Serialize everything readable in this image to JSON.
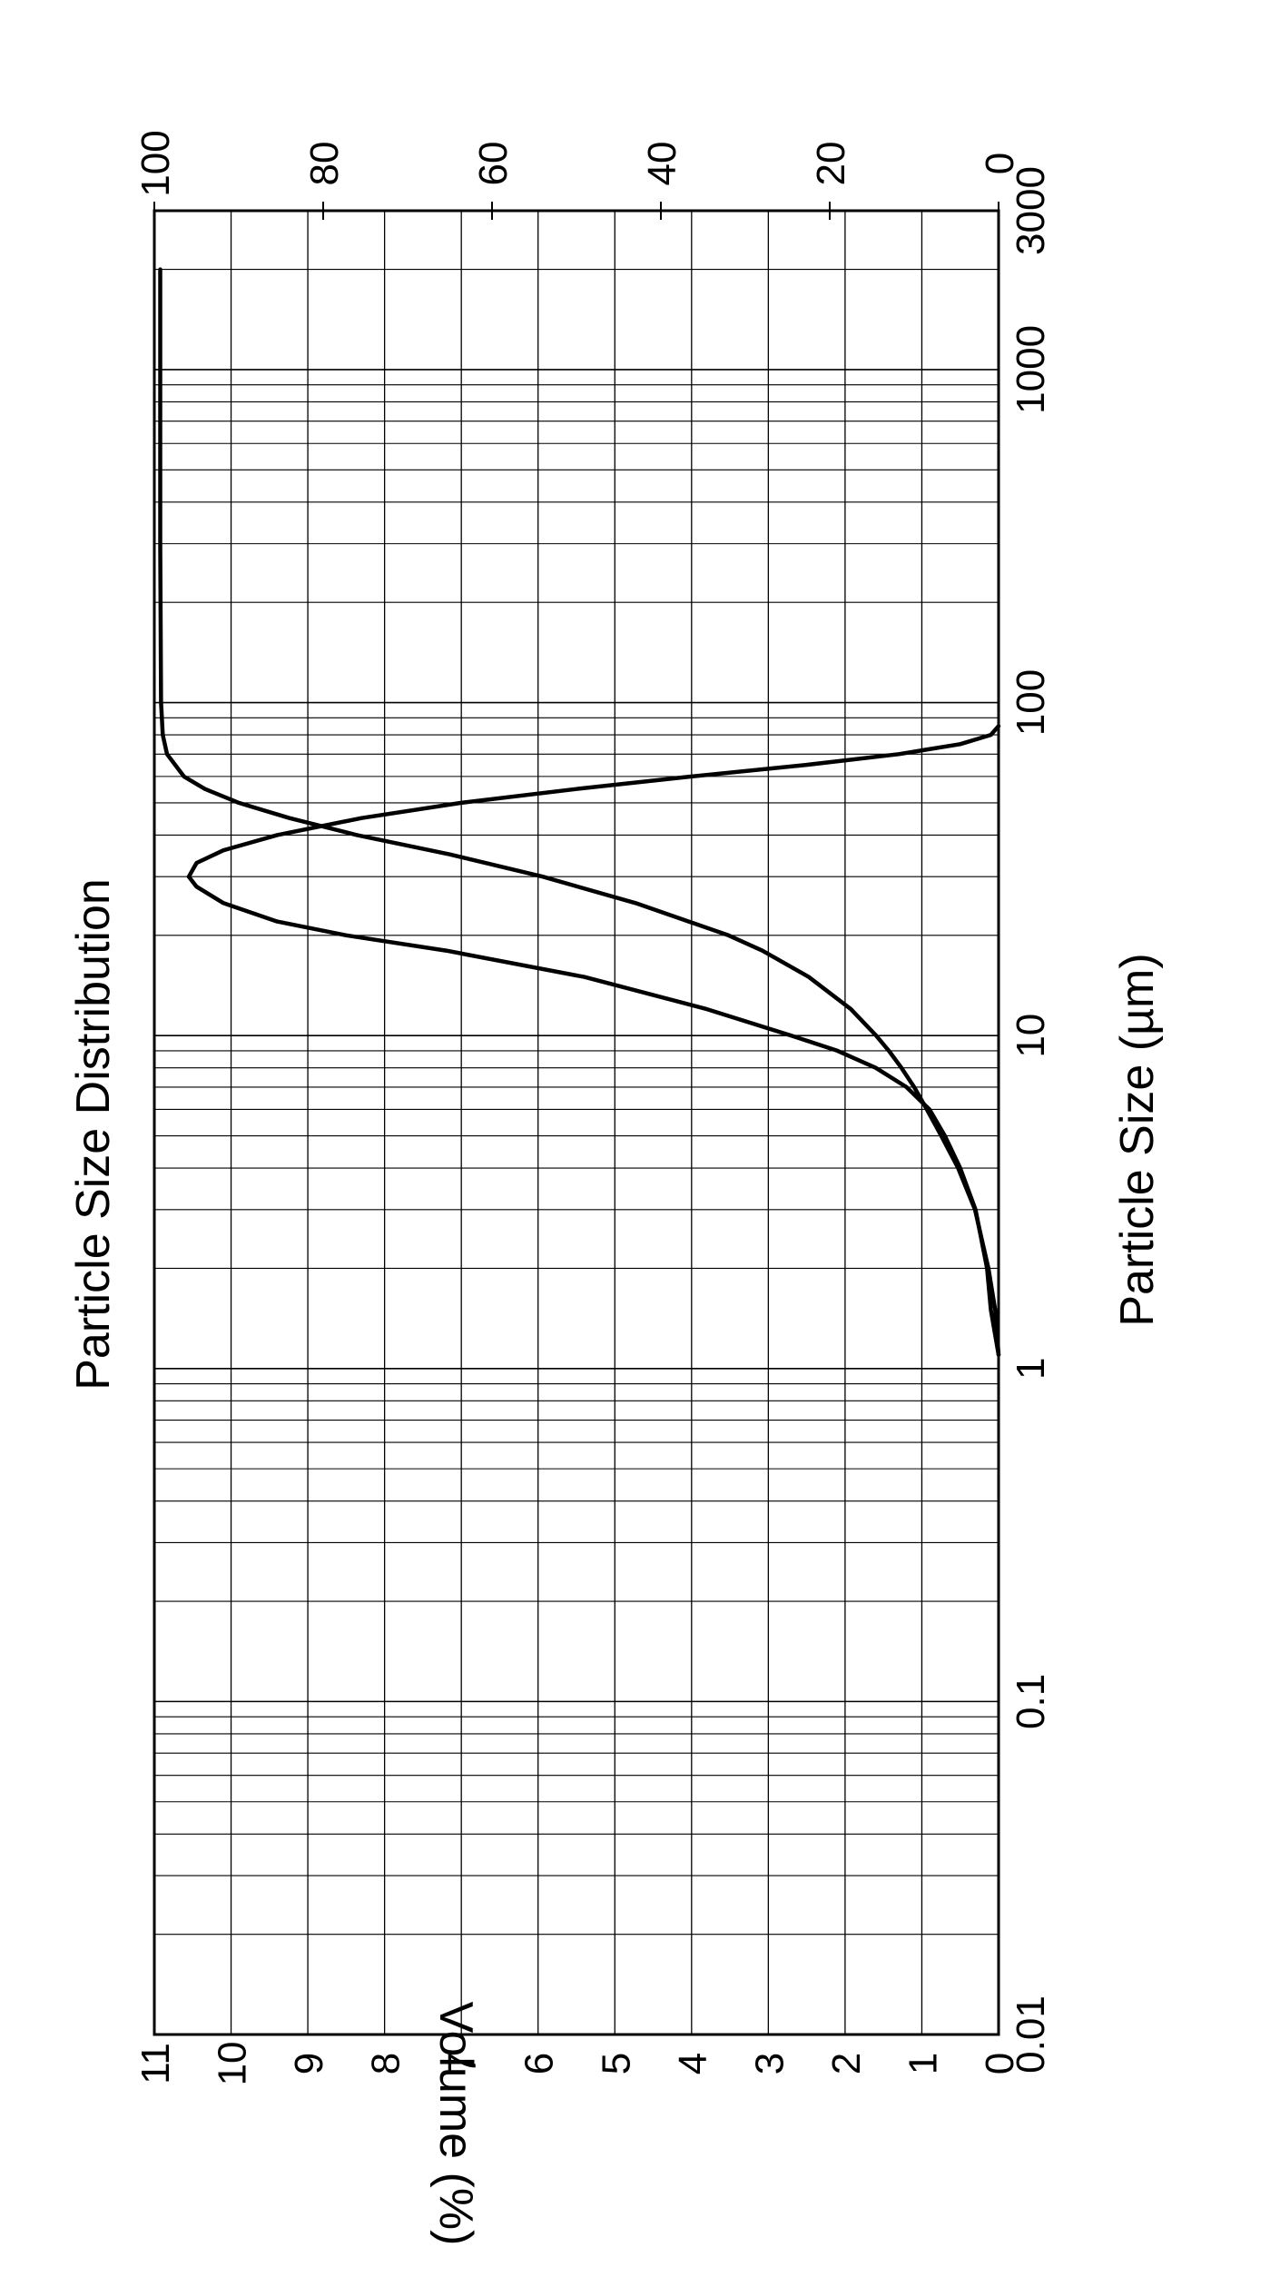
{
  "chart_data": {
    "type": "line",
    "orientation": "rotated-90-clockwise",
    "title": "Particle Size Distribution",
    "xlabel": "Particle Size (µm)",
    "ylabel": "Volume (%)",
    "x_scale": "log",
    "xlim": [
      0.01,
      3000
    ],
    "ylim": [
      0,
      11
    ],
    "y2lim": [
      0,
      100
    ],
    "x_tick_labels": [
      {
        "value": 0.01,
        "label": "0.01"
      },
      {
        "value": 0.1,
        "label": "0.1"
      },
      {
        "value": 1,
        "label": "1"
      },
      {
        "value": 10,
        "label": "10"
      },
      {
        "value": 100,
        "label": "100"
      },
      {
        "value": 1000,
        "label": "1000"
      },
      {
        "value": 3000,
        "label": "3000"
      }
    ],
    "y_tick_labels": [
      {
        "value": 0,
        "label": "0"
      },
      {
        "value": 1,
        "label": "1"
      },
      {
        "value": 2,
        "label": "2"
      },
      {
        "value": 3,
        "label": "3"
      },
      {
        "value": 4,
        "label": "4"
      },
      {
        "value": 5,
        "label": "5"
      },
      {
        "value": 6,
        "label": "6"
      },
      {
        "value": 7,
        "label": "7"
      },
      {
        "value": 8,
        "label": "8"
      },
      {
        "value": 9,
        "label": "9"
      },
      {
        "value": 10,
        "label": "10"
      },
      {
        "value": 11,
        "label": "11"
      }
    ],
    "y2_tick_labels": [
      {
        "value": 0,
        "label": "0"
      },
      {
        "value": 20,
        "label": "20"
      },
      {
        "value": 40,
        "label": "40"
      },
      {
        "value": 60,
        "label": "60"
      },
      {
        "value": 80,
        "label": "80"
      },
      {
        "value": 100,
        "label": "100"
      }
    ],
    "grid": true,
    "series": [
      {
        "axis": "y",
        "color": "#000000",
        "points": [
          [
            1.1,
            0
          ],
          [
            1.5,
            0.1
          ],
          [
            2,
            0.15
          ],
          [
            3,
            0.3
          ],
          [
            4,
            0.5
          ],
          [
            5,
            0.7
          ],
          [
            6,
            0.9
          ],
          [
            7,
            1.2
          ],
          [
            8,
            1.6
          ],
          [
            9,
            2.1
          ],
          [
            10,
            2.7
          ],
          [
            12,
            3.8
          ],
          [
            15,
            5.4
          ],
          [
            18,
            7.2
          ],
          [
            20,
            8.5
          ],
          [
            22,
            9.4
          ],
          [
            25,
            10.1
          ],
          [
            28,
            10.45
          ],
          [
            30,
            10.55
          ],
          [
            33,
            10.45
          ],
          [
            36,
            10.1
          ],
          [
            40,
            9.4
          ],
          [
            45,
            8.3
          ],
          [
            50,
            7.0
          ],
          [
            55,
            5.5
          ],
          [
            60,
            4.0
          ],
          [
            65,
            2.5
          ],
          [
            70,
            1.3
          ],
          [
            75,
            0.5
          ],
          [
            80,
            0.1
          ],
          [
            85,
            0
          ]
        ]
      },
      {
        "axis": "y2",
        "color": "#000000",
        "points": [
          [
            1.1,
            0
          ],
          [
            1.5,
            0.4
          ],
          [
            2,
            1.2
          ],
          [
            3,
            2.8
          ],
          [
            4,
            4.8
          ],
          [
            5,
            6.8
          ],
          [
            6,
            8.5
          ],
          [
            7,
            10
          ],
          [
            8,
            11.5
          ],
          [
            9,
            13
          ],
          [
            10,
            14.5
          ],
          [
            12,
            17.5
          ],
          [
            15,
            22.5
          ],
          [
            18,
            28
          ],
          [
            20,
            32
          ],
          [
            25,
            43
          ],
          [
            30,
            54
          ],
          [
            35,
            65
          ],
          [
            40,
            76
          ],
          [
            45,
            84
          ],
          [
            50,
            90
          ],
          [
            55,
            94
          ],
          [
            60,
            96.5
          ],
          [
            70,
            98.5
          ],
          [
            80,
            99
          ],
          [
            100,
            99.2
          ],
          [
            300,
            99.3
          ],
          [
            1000,
            99.3
          ],
          [
            2000,
            99.3
          ]
        ]
      }
    ]
  }
}
